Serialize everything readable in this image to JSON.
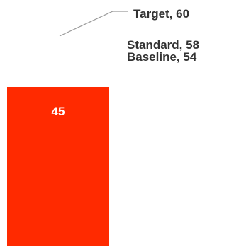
{
  "chart_data": {
    "type": "bar",
    "categories": [
      ""
    ],
    "values": [
      45
    ],
    "data_labels": [
      "45"
    ],
    "ylim": [
      0,
      60
    ],
    "reference_lines": [
      {
        "label": "Target, 60",
        "value": 60
      },
      {
        "label": "Standard, 58",
        "value": 58
      },
      {
        "label": "Baseline, 54",
        "value": 54
      }
    ],
    "grid": false,
    "colors": {
      "bar": "#ff2a00",
      "bar_label": "#ffffff",
      "annotation": "#333333",
      "leader_line": "#9a9a9a"
    }
  }
}
